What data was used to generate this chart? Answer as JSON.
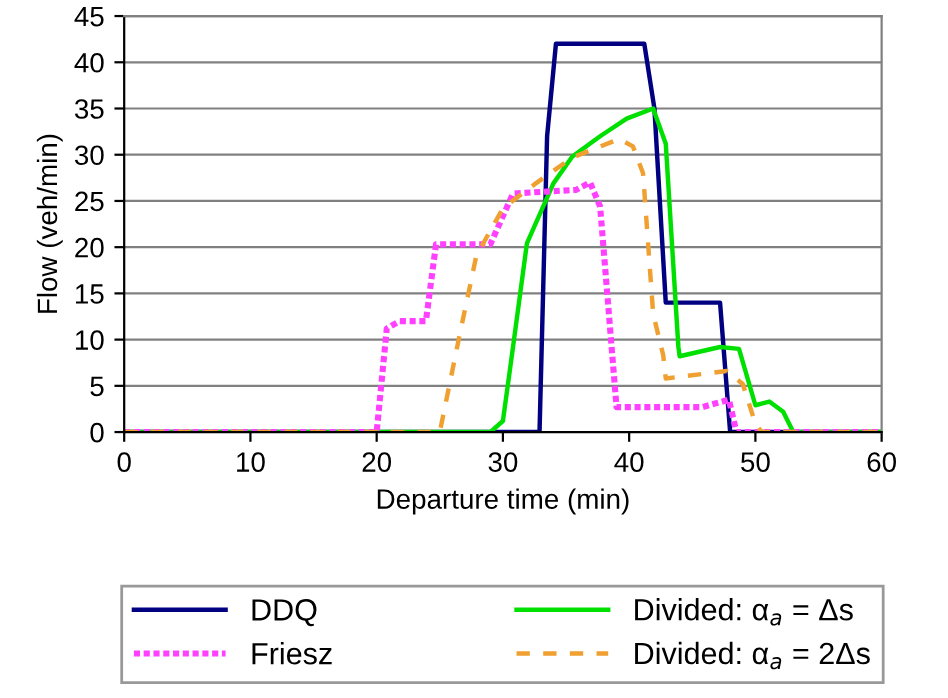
{
  "chart_data": {
    "type": "line",
    "xlabel": "Departure time (min)",
    "ylabel": "Flow (veh/min)",
    "xlim": [
      0,
      60
    ],
    "xticks": [
      0,
      10,
      20,
      30,
      40,
      50,
      60
    ],
    "ylim": [
      0,
      45
    ],
    "yticks": [
      0,
      5,
      10,
      15,
      20,
      25,
      30,
      35,
      40,
      45
    ],
    "grid": "y",
    "legend": "bottom",
    "marker": "none",
    "series": [
      {
        "name": "DDQ",
        "color": "#000080",
        "line_style": "solid",
        "x": [
          0,
          32.9,
          33.5,
          34.2,
          41.2,
          42,
          42.9,
          47.2,
          48,
          60
        ],
        "values": [
          0,
          0,
          32,
          42,
          42,
          35,
          14,
          14,
          0,
          0
        ]
      },
      {
        "name": "Divided: α$_{a}$ = Δs",
        "color": "#00e000",
        "line_style": "solid",
        "x": [
          0,
          29,
          30,
          30.8,
          31.9,
          34,
          35.5,
          37.7,
          39.8,
          41.9,
          42.9,
          43.9,
          44,
          47.2,
          48.7,
          50,
          51.1,
          52.2,
          53,
          60
        ],
        "values": [
          0,
          0,
          1.2,
          9.2,
          20.4,
          26.9,
          29.8,
          32,
          33.9,
          35,
          31.2,
          9.2,
          8.2,
          9.2,
          9,
          2.9,
          3.3,
          2.2,
          0,
          0
        ]
      },
      {
        "name": "Friesz",
        "color": "#ff40ff",
        "line_style": "dotted",
        "x": [
          0,
          20,
          20.8,
          21.8,
          23.9,
          24.7,
          29,
          30.8,
          35.8,
          36.9,
          37.7,
          39,
          44,
          45.8,
          47.9,
          48.5,
          60
        ],
        "values": [
          0,
          0,
          11.2,
          12,
          12,
          20.3,
          20.3,
          25.8,
          26.2,
          27,
          24.4,
          2.7,
          2.7,
          2.7,
          3.5,
          0,
          0
        ]
      },
      {
        "name": "Divided: α$_{a}$ = 2Δs",
        "color": "#f0a030",
        "line_style": "dashed",
        "x": [
          0,
          25,
          26.6,
          27.9,
          30,
          32.6,
          35.5,
          39.2,
          40.3,
          41.1,
          41.9,
          42.7,
          42.9,
          47.7,
          49,
          50,
          50.5,
          60
        ],
        "values": [
          0,
          0,
          10.7,
          19.1,
          24.2,
          26.9,
          29.7,
          31.7,
          30.9,
          28,
          12.8,
          8.3,
          5.8,
          6.6,
          5.2,
          0.9,
          0,
          0
        ]
      }
    ]
  }
}
